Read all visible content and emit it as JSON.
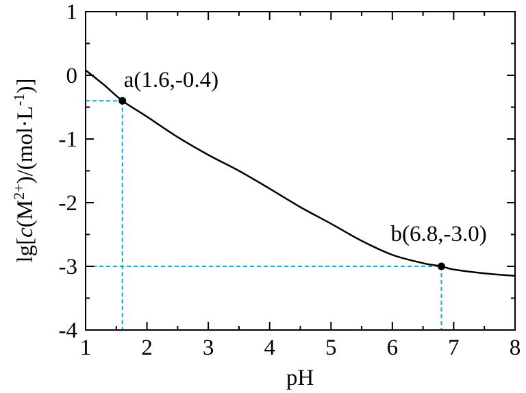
{
  "chart_data": {
    "type": "line",
    "title": "",
    "xlabel": "pH",
    "ylabel_parts": {
      "pre": "lg[",
      "c": "c",
      "mid1": "(M",
      "charge": "2+",
      "mid2": ")/(mol·L",
      "exp": "-1",
      "post": ")]"
    },
    "xlim": [
      1,
      8
    ],
    "ylim": [
      -4,
      1
    ],
    "x_ticks": [
      "1",
      "2",
      "3",
      "4",
      "5",
      "6",
      "7",
      "8"
    ],
    "y_ticks": [
      "-4",
      "-3",
      "-2",
      "-1",
      "0",
      "1"
    ],
    "grid": false,
    "series": [
      {
        "x": [
          1.0,
          1.3,
          1.6,
          2.0,
          2.5,
          3.0,
          3.5,
          4.0,
          4.5,
          5.0,
          5.5,
          6.0,
          6.5,
          6.8,
          7.0,
          7.5,
          8.0
        ],
        "y": [
          0.08,
          -0.15,
          -0.4,
          -0.65,
          -0.97,
          -1.25,
          -1.5,
          -1.78,
          -2.07,
          -2.33,
          -2.6,
          -2.82,
          -2.95,
          -3.0,
          -3.05,
          -3.11,
          -3.15
        ]
      }
    ],
    "points": [
      {
        "label": "a(1.6,-0.4)",
        "x": 1.6,
        "y": -0.4
      },
      {
        "label": "b(6.8,-3.0)",
        "x": 6.8,
        "y": -3.0
      }
    ],
    "guide_color": "#1fa3c8",
    "line_color": "#000000"
  }
}
